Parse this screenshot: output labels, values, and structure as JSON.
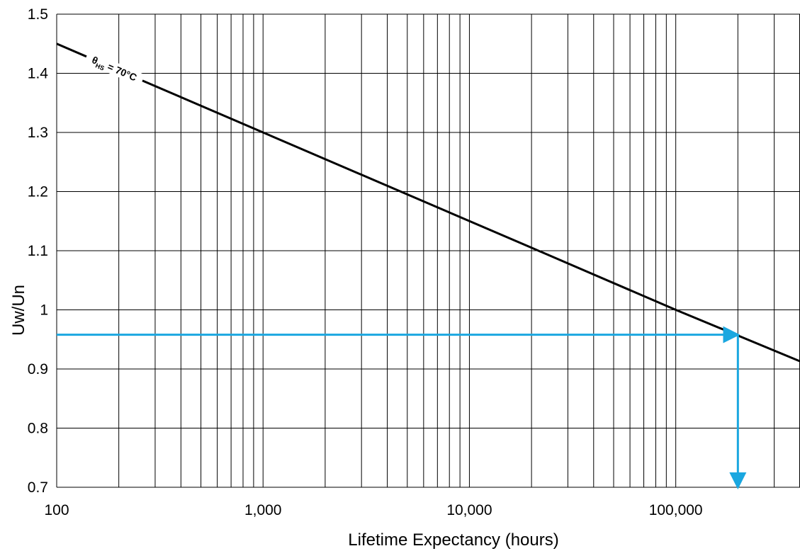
{
  "chart_data": {
    "type": "line",
    "title": "",
    "xlabel": "Lifetime Expectancy (hours)",
    "ylabel": "Uw/Un",
    "xscale": "log",
    "xlim": [
      100,
      400000
    ],
    "ylim": [
      0.7,
      1.5
    ],
    "grid": true,
    "x_tick_labels": [
      {
        "value": 100,
        "label": "100"
      },
      {
        "value": 1000,
        "label": "1,000"
      },
      {
        "value": 10000,
        "label": "10,000"
      },
      {
        "value": 100000,
        "label": "100,000"
      }
    ],
    "y_ticks": [
      0.7,
      0.8,
      0.9,
      1,
      1.1,
      1.2,
      1.3,
      1.4,
      1.5
    ],
    "series": [
      {
        "name": "θHS = 70°C",
        "label_main": "θ",
        "label_sub": "HS",
        "label_rest": " = 70°C",
        "color": "#000000",
        "x": [
          100,
          1000,
          20000,
          100000,
          400000
        ],
        "y": [
          1.45,
          1.3,
          1.105,
          1.0,
          0.913
        ]
      }
    ],
    "annotations": [
      {
        "type": "arrow",
        "color": "#1aa7e0",
        "from": {
          "x": 100,
          "y": 0.958
        },
        "to": {
          "x": 200000,
          "y": 0.958
        }
      },
      {
        "type": "arrow",
        "color": "#1aa7e0",
        "from": {
          "x": 200000,
          "y": 0.958
        },
        "to": {
          "x": 200000,
          "y": 0.7
        }
      }
    ]
  }
}
